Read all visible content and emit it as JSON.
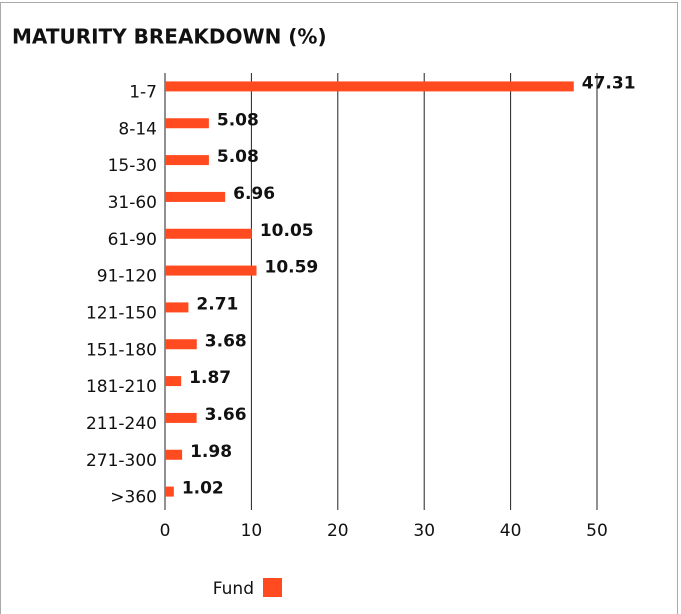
{
  "chart_data": {
    "type": "hbar",
    "title": "MATURITY BREAKDOWN (%)",
    "categories": [
      "1-7",
      "8-14",
      "15-30",
      "31-60",
      "61-90",
      "91-120",
      "121-150",
      "151-180",
      "181-210",
      "211-240",
      "271-300",
      ">360"
    ],
    "series": [
      {
        "name": "Fund",
        "color": "#ff4b1f",
        "values": [
          47.31,
          5.08,
          5.08,
          6.96,
          10.05,
          10.59,
          2.71,
          3.68,
          1.87,
          3.66,
          1.98,
          1.02
        ]
      }
    ],
    "xlim": [
      0,
      50
    ],
    "xticks": [
      0,
      10,
      20,
      30,
      40,
      50
    ],
    "grid": true,
    "legend": "bottom"
  }
}
